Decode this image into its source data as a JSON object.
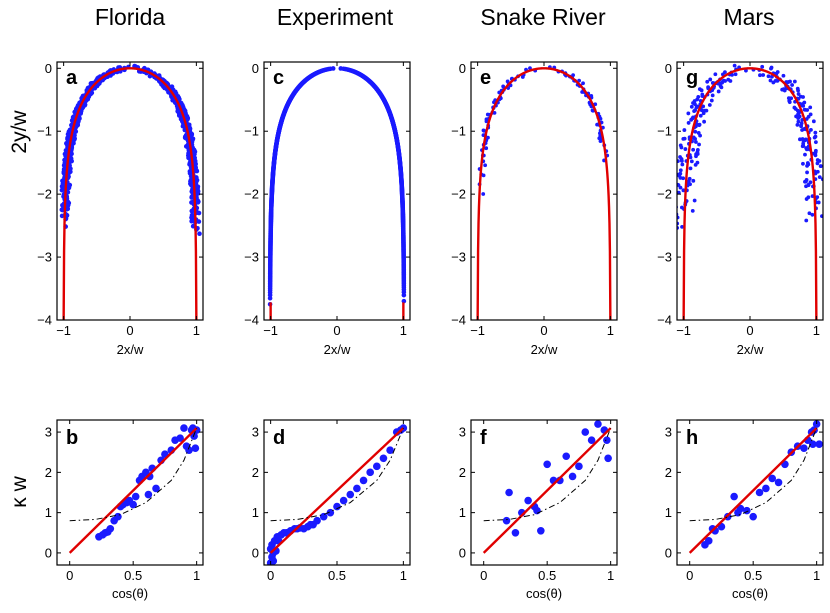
{
  "figure": {
    "top_ylabel": "2y/w",
    "bottom_ylabel": "κ w"
  },
  "chart_data": [
    {
      "type": "scatter",
      "panel": "a",
      "column_title": "Florida",
      "row": "top",
      "xlabel": "2x/w",
      "ylabel": "2y/w",
      "xlim": [
        -1.1,
        1.1
      ],
      "ylim": [
        -4,
        0.1
      ],
      "xticks": [
        -1,
        0,
        1
      ],
      "xticklabels": [
        "−1",
        "0",
        "1"
      ],
      "yticks": [
        0,
        -1,
        -2,
        -3,
        -4
      ],
      "yticklabels": [
        "0",
        "−1",
        "−2",
        "−3",
        "−4"
      ],
      "series": [
        {
          "kind": "scatter",
          "color": "#1a1aff",
          "density": "very_dense",
          "noise": 0.02,
          "y_left_end": -2.5,
          "y_right_end": -2.65,
          "extra_points": [
            [
              -0.95,
              -1.3
            ],
            [
              -0.93,
              -1.5
            ],
            [
              -0.97,
              -1.7
            ],
            [
              -0.92,
              -1.9
            ],
            [
              -0.96,
              -1.95
            ],
            [
              -0.94,
              -1.6
            ],
            [
              1.02,
              -2.1
            ],
            [
              1.0,
              -1.8
            ],
            [
              1.04,
              -2.3
            ],
            [
              0.98,
              -2.0
            ]
          ]
        },
        {
          "kind": "line",
          "color": "#e00000",
          "shape": "theory_curve",
          "x_range": [
            -1,
            1
          ],
          "y_floor": -4
        }
      ]
    },
    {
      "type": "scatter",
      "panel": "c",
      "column_title": "Experiment",
      "row": "top",
      "xlabel": "2x/w",
      "ylabel": "",
      "xlim": [
        -1.1,
        1.1
      ],
      "ylim": [
        -4,
        0.1
      ],
      "xticks": [
        -1,
        0,
        1
      ],
      "xticklabels": [
        "−1",
        "0",
        "1"
      ],
      "yticks": [
        0,
        -1,
        -2,
        -3,
        -4
      ],
      "yticklabels": [
        "0",
        "−1",
        "−2",
        "−3",
        "−4"
      ],
      "series": [
        {
          "kind": "scatter",
          "color": "#1a1aff",
          "density": "very_dense",
          "noise": 0.0,
          "y_left_end": -3.75,
          "y_right_end": -3.7,
          "flare": 0.1
        },
        {
          "kind": "line",
          "color": "#e00000",
          "shape": "theory_curve_stub",
          "x_range": [
            -1,
            1
          ],
          "y_floor": -4
        }
      ]
    },
    {
      "type": "scatter",
      "panel": "e",
      "column_title": "Snake River",
      "row": "top",
      "xlabel": "2x/w",
      "ylabel": "",
      "xlim": [
        -1.1,
        1.1
      ],
      "ylim": [
        -4,
        0.1
      ],
      "xticks": [
        -1,
        0,
        1
      ],
      "xticklabels": [
        "−1",
        "0",
        "1"
      ],
      "yticks": [
        0,
        -1,
        -2,
        -3,
        -4
      ],
      "yticklabels": [
        "0",
        "−1",
        "−2",
        "−3",
        "−4"
      ],
      "series": [
        {
          "kind": "scatter",
          "color": "#1a1aff",
          "density": "sparse",
          "noise": 0.02,
          "y_left_end": -2.0,
          "y_right_end": -1.5
        },
        {
          "kind": "line",
          "color": "#e00000",
          "shape": "theory_curve",
          "x_range": [
            -1,
            1
          ],
          "y_floor": -4
        }
      ]
    },
    {
      "type": "scatter",
      "panel": "g",
      "column_title": "Mars",
      "row": "top",
      "xlabel": "2x/w",
      "ylabel": "",
      "xlim": [
        -1.1,
        1.1
      ],
      "ylim": [
        -4,
        0.1
      ],
      "xticks": [
        -1,
        0,
        1
      ],
      "xticklabels": [
        "−1",
        "0",
        "1"
      ],
      "yticks": [
        0,
        -1,
        -2,
        -3,
        -4
      ],
      "yticklabels": [
        "0",
        "−1",
        "−2",
        "−3",
        "−4"
      ],
      "series": [
        {
          "kind": "scatter",
          "color": "#1a1aff",
          "density": "medium",
          "noise": 0.05,
          "y_left_end": -2.6,
          "y_right_end": -2.5
        },
        {
          "kind": "line",
          "color": "#e00000",
          "shape": "theory_curve",
          "x_range": [
            -1,
            1
          ],
          "y_floor": -4
        }
      ]
    },
    {
      "type": "scatter",
      "panel": "b",
      "column_title": "Florida",
      "row": "bottom",
      "xlabel": "cos(θ)",
      "ylabel": "κ w",
      "xlim": [
        -0.1,
        1.05
      ],
      "ylim": [
        -0.3,
        3.3
      ],
      "xticks": [
        0,
        0.5,
        1
      ],
      "xticklabels": [
        "0",
        "0.5",
        "1"
      ],
      "yticks": [
        0,
        1,
        2,
        3
      ],
      "yticklabels": [
        "0",
        "1",
        "2",
        "3"
      ],
      "series": [
        {
          "kind": "scatter",
          "color": "#1a1aff",
          "points": [
            [
              0.23,
              0.4
            ],
            [
              0.26,
              0.45
            ],
            [
              0.28,
              0.5
            ],
            [
              0.3,
              0.52
            ],
            [
              0.32,
              0.6
            ],
            [
              0.35,
              0.8
            ],
            [
              0.38,
              0.9
            ],
            [
              0.4,
              1.15
            ],
            [
              0.42,
              1.2
            ],
            [
              0.45,
              1.25
            ],
            [
              0.47,
              1.3
            ],
            [
              0.5,
              1.2
            ],
            [
              0.52,
              1.4
            ],
            [
              0.55,
              1.8
            ],
            [
              0.57,
              1.9
            ],
            [
              0.6,
              2.0
            ],
            [
              0.63,
              1.9
            ],
            [
              0.65,
              2.1
            ],
            [
              0.62,
              1.45
            ],
            [
              0.68,
              1.6
            ],
            [
              0.72,
              2.3
            ],
            [
              0.75,
              2.45
            ],
            [
              0.8,
              2.55
            ],
            [
              0.83,
              2.8
            ],
            [
              0.87,
              2.85
            ],
            [
              0.9,
              3.1
            ],
            [
              0.92,
              2.65
            ],
            [
              0.94,
              2.55
            ],
            [
              0.96,
              3.05
            ],
            [
              0.98,
              2.9
            ],
            [
              1.0,
              3.05
            ],
            [
              0.99,
              2.6
            ],
            [
              0.97,
              3.1
            ]
          ]
        },
        {
          "kind": "line",
          "color": "#e00000",
          "points": [
            [
              0,
              0
            ],
            [
              1,
              3.1
            ]
          ]
        },
        {
          "kind": "dashdot",
          "color": "#000000",
          "points": [
            [
              0,
              0.8
            ],
            [
              0.2,
              0.83
            ],
            [
              0.4,
              0.95
            ],
            [
              0.6,
              1.25
            ],
            [
              0.8,
              1.8
            ],
            [
              0.9,
              2.3
            ],
            [
              1.0,
              3.1
            ]
          ]
        }
      ]
    },
    {
      "type": "scatter",
      "panel": "d",
      "column_title": "Experiment",
      "row": "bottom",
      "xlabel": "",
      "ylabel": "",
      "xlim": [
        -0.05,
        1.05
      ],
      "ylim": [
        -0.3,
        3.3
      ],
      "xticks": [
        0,
        0.5,
        1
      ],
      "xticklabels": [
        "0",
        "0.5",
        "1"
      ],
      "yticks": [
        0,
        1,
        2,
        3
      ],
      "yticklabels": [
        "0",
        "1",
        "2",
        "3"
      ],
      "series": [
        {
          "kind": "scatter",
          "color": "#1a1aff",
          "points": [
            [
              0.0,
              -0.25
            ],
            [
              0.01,
              -0.1
            ],
            [
              0.02,
              0.0
            ],
            [
              0.0,
              0.1
            ],
            [
              0.01,
              0.2
            ],
            [
              0.03,
              0.3
            ],
            [
              0.02,
              -0.2
            ],
            [
              0.04,
              0.05
            ],
            [
              0.05,
              0.4
            ],
            [
              0.06,
              0.3
            ],
            [
              0.08,
              0.45
            ],
            [
              0.1,
              0.5
            ],
            [
              0.12,
              0.5
            ],
            [
              0.15,
              0.55
            ],
            [
              0.18,
              0.6
            ],
            [
              0.2,
              0.6
            ],
            [
              0.22,
              0.62
            ],
            [
              0.25,
              0.6
            ],
            [
              0.28,
              0.65
            ],
            [
              0.3,
              0.7
            ],
            [
              0.32,
              0.7
            ],
            [
              0.35,
              0.8
            ],
            [
              0.4,
              0.9
            ],
            [
              0.45,
              1.0
            ],
            [
              0.5,
              1.15
            ],
            [
              0.55,
              1.3
            ],
            [
              0.6,
              1.45
            ],
            [
              0.65,
              1.6
            ],
            [
              0.7,
              1.8
            ],
            [
              0.75,
              2.0
            ],
            [
              0.8,
              2.15
            ],
            [
              0.85,
              2.35
            ],
            [
              0.9,
              2.55
            ],
            [
              0.95,
              3.0
            ],
            [
              0.98,
              3.05
            ],
            [
              1.0,
              3.1
            ]
          ]
        },
        {
          "kind": "line",
          "color": "#e00000",
          "points": [
            [
              0,
              0
            ],
            [
              1,
              3.1
            ]
          ]
        },
        {
          "kind": "dashdot",
          "color": "#000000",
          "points": [
            [
              0,
              0.8
            ],
            [
              0.2,
              0.83
            ],
            [
              0.4,
              0.95
            ],
            [
              0.6,
              1.25
            ],
            [
              0.8,
              1.8
            ],
            [
              0.9,
              2.3
            ],
            [
              1.0,
              3.1
            ]
          ]
        }
      ]
    },
    {
      "type": "scatter",
      "panel": "f",
      "column_title": "Snake River",
      "row": "bottom",
      "xlabel": "cos(θ)",
      "ylabel": "",
      "xlim": [
        -0.1,
        1.05
      ],
      "ylim": [
        -0.3,
        3.3
      ],
      "xticks": [
        0,
        0.5,
        1
      ],
      "xticklabels": [
        "0",
        "0.5",
        "1"
      ],
      "yticks": [
        0,
        1,
        2,
        3
      ],
      "yticklabels": [
        "0",
        "1",
        "2",
        "3"
      ],
      "series": [
        {
          "kind": "scatter",
          "color": "#1a1aff",
          "points": [
            [
              0.18,
              0.8
            ],
            [
              0.2,
              1.5
            ],
            [
              0.25,
              0.5
            ],
            [
              0.3,
              1.0
            ],
            [
              0.35,
              1.3
            ],
            [
              0.4,
              1.15
            ],
            [
              0.42,
              1.05
            ],
            [
              0.45,
              0.55
            ],
            [
              0.5,
              2.2
            ],
            [
              0.55,
              1.8
            ],
            [
              0.6,
              1.8
            ],
            [
              0.65,
              2.4
            ],
            [
              0.7,
              1.9
            ],
            [
              0.75,
              2.15
            ],
            [
              0.8,
              3.0
            ],
            [
              0.85,
              2.8
            ],
            [
              0.9,
              3.2
            ],
            [
              0.95,
              3.05
            ],
            [
              0.98,
              2.35
            ],
            [
              0.97,
              2.8
            ]
          ]
        },
        {
          "kind": "line",
          "color": "#e00000",
          "points": [
            [
              0,
              0
            ],
            [
              1,
              3.1
            ]
          ]
        },
        {
          "kind": "dashdot",
          "color": "#000000",
          "points": [
            [
              0,
              0.8
            ],
            [
              0.2,
              0.83
            ],
            [
              0.4,
              0.95
            ],
            [
              0.6,
              1.25
            ],
            [
              0.8,
              1.8
            ],
            [
              0.9,
              2.3
            ],
            [
              1.0,
              3.1
            ]
          ]
        }
      ]
    },
    {
      "type": "scatter",
      "panel": "h",
      "column_title": "Mars",
      "row": "bottom",
      "xlabel": "cos(θ)",
      "ylabel": "",
      "xlim": [
        -0.1,
        1.05
      ],
      "ylim": [
        -0.3,
        3.3
      ],
      "xticks": [
        0,
        0.5,
        1
      ],
      "xticklabels": [
        "0",
        "0.5",
        "1"
      ],
      "yticks": [
        0,
        1,
        2,
        3
      ],
      "yticklabels": [
        "0",
        "1",
        "2",
        "3"
      ],
      "series": [
        {
          "kind": "scatter",
          "color": "#1a1aff",
          "points": [
            [
              0.12,
              0.2
            ],
            [
              0.15,
              0.3
            ],
            [
              0.18,
              0.6
            ],
            [
              0.2,
              0.55
            ],
            [
              0.25,
              0.65
            ],
            [
              0.3,
              0.9
            ],
            [
              0.35,
              1.4
            ],
            [
              0.38,
              1.0
            ],
            [
              0.4,
              1.1
            ],
            [
              0.45,
              1.05
            ],
            [
              0.5,
              0.9
            ],
            [
              0.55,
              1.5
            ],
            [
              0.6,
              1.6
            ],
            [
              0.65,
              1.85
            ],
            [
              0.7,
              1.75
            ],
            [
              0.75,
              2.2
            ],
            [
              0.8,
              2.5
            ],
            [
              0.85,
              2.65
            ],
            [
              0.9,
              2.6
            ],
            [
              0.93,
              2.8
            ],
            [
              0.96,
              3.0
            ],
            [
              0.97,
              2.7
            ],
            [
              1.0,
              3.2
            ],
            [
              1.02,
              2.7
            ],
            [
              0.98,
              3.05
            ]
          ]
        },
        {
          "kind": "line",
          "color": "#e00000",
          "points": [
            [
              0,
              0
            ],
            [
              1,
              3.1
            ]
          ]
        },
        {
          "kind": "dashdot",
          "color": "#000000",
          "points": [
            [
              0,
              0.8
            ],
            [
              0.2,
              0.83
            ],
            [
              0.4,
              0.95
            ],
            [
              0.6,
              1.25
            ],
            [
              0.8,
              1.8
            ],
            [
              0.9,
              2.3
            ],
            [
              1.0,
              3.1
            ]
          ]
        }
      ]
    }
  ]
}
